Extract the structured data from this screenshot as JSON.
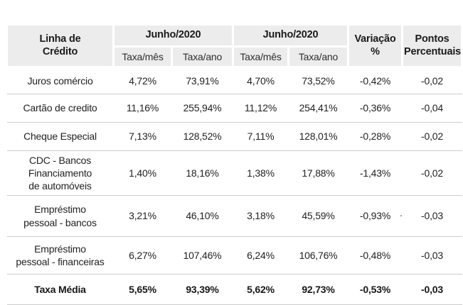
{
  "colors": {
    "header_bg": "#ececec",
    "row_line": "#cccccc",
    "text": "#222222"
  },
  "table": {
    "header": {
      "linha_de_credito": "Linha de\nCrédito",
      "group1": "Junho/2020",
      "group2": "Junho/2020",
      "sub": [
        "Taxa/mês",
        "Taxa/ano",
        "Taxa/mês",
        "Taxa/ano"
      ],
      "variacao": "Variação\n%",
      "pontos": "Pontos\nPercentuais"
    },
    "rows": [
      {
        "label": "Juros comércio",
        "taxa_mes_1": "4,72%",
        "taxa_ano_1": "73,91%",
        "taxa_mes_2": "4,70%",
        "taxa_ano_2": "73,52%",
        "variacao": "-0,42%",
        "pontos": "-0,02",
        "bold": false
      },
      {
        "label": "Cartão de credito",
        "taxa_mes_1": "11,16%",
        "taxa_ano_1": "255,94%",
        "taxa_mes_2": "11,12%",
        "taxa_ano_2": "254,41%",
        "variacao": "-0,36%",
        "pontos": "-0,04",
        "bold": false
      },
      {
        "label": "Cheque Especial",
        "taxa_mes_1": "7,13%",
        "taxa_ano_1": "128,52%",
        "taxa_mes_2": "7,11%",
        "taxa_ano_2": "128,01%",
        "variacao": "-0,28%",
        "pontos": "-0,02",
        "bold": false
      },
      {
        "label": "CDC - Bancos\nFinanciamento\nde automóveis",
        "taxa_mes_1": "1,40%",
        "taxa_ano_1": "18,16%",
        "taxa_mes_2": "1,38%",
        "taxa_ano_2": "17,88%",
        "variacao": "-1,43%",
        "pontos": "-0,02",
        "bold": false
      },
      {
        "label": "Empréstimo\npessoal - bancos",
        "taxa_mes_1": "3,21%",
        "taxa_ano_1": "46,10%",
        "taxa_mes_2": "3,18%",
        "taxa_ano_2": "45,59%",
        "variacao": "-0,93%",
        "pontos": "-0,03",
        "bold": false
      },
      {
        "label": "Empréstimo\npessoal - financeiras",
        "taxa_mes_1": "6,27%",
        "taxa_ano_1": "107,46%",
        "taxa_mes_2": "6,24%",
        "taxa_ano_2": "106,76%",
        "variacao": "-0,48%",
        "pontos": "-0,03",
        "bold": false
      },
      {
        "label": "Taxa Média",
        "taxa_mes_1": "5,65%",
        "taxa_ano_1": "93,39%",
        "taxa_mes_2": "5,62%",
        "taxa_ano_2": "92,73%",
        "variacao": "-0,53%",
        "pontos": "-0,03",
        "bold": true
      }
    ]
  },
  "artifacts": {
    "stray_dot": "."
  }
}
